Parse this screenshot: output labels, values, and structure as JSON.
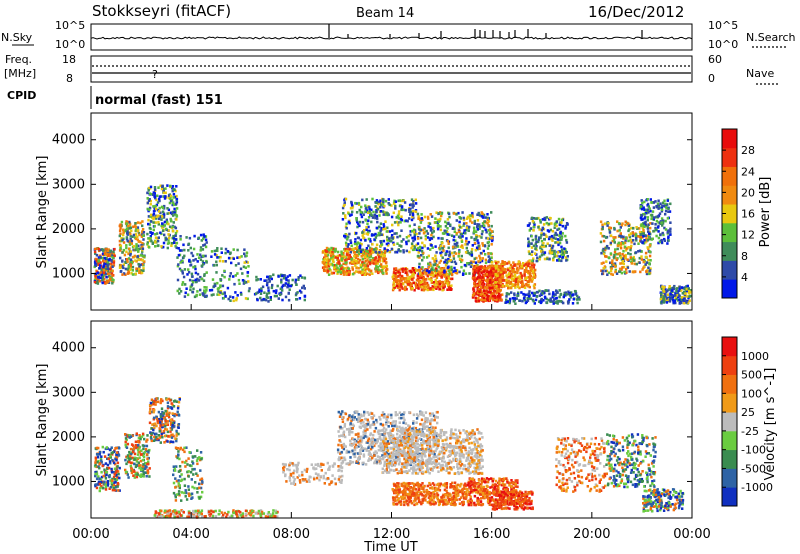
{
  "header": {
    "station": "Stokkseyri (fitACF)",
    "beam": "Beam 14",
    "date": "16/Dec/2012"
  },
  "noise_panel": {
    "left_label": "N.Sky",
    "left_ticks": [
      "10^5",
      "10^0"
    ],
    "right_label": "N.Search",
    "right_ticks": [
      "10^5",
      "10^0"
    ]
  },
  "freq_panel": {
    "left_label_1": "Freq.",
    "left_label_2": "[MHz]",
    "left_ticks": [
      "18",
      "8"
    ],
    "right_label": "Nave",
    "right_ticks": [
      "60",
      "0"
    ]
  },
  "cpid": {
    "label": "CPID",
    "value": "normal (fast) 151"
  },
  "colors": {
    "power_scale": [
      "#0018e8",
      "#2e4aa8",
      "#3f8c5a",
      "#5cbf3a",
      "#e8c810",
      "#f08a10",
      "#f0700a",
      "#ee3010",
      "#e80c0c"
    ],
    "velocity_scale": [
      "#1030c0",
      "#2e63a5",
      "#3a8c50",
      "#6acc40",
      "#bcbcbc",
      "#f09a18",
      "#f07010",
      "#ee4010",
      "#e81010"
    ]
  },
  "chart_data": [
    {
      "type": "heatmap",
      "name": "power",
      "ylabel": "Slant Range [km]",
      "y_ticks": [
        "4000",
        "3000",
        "2000",
        "1000"
      ],
      "ylim": [
        180,
        4600
      ],
      "colorbar_label": "Power [dB]",
      "colorbar_ticks": [
        "28",
        "24",
        "20",
        "16",
        "12",
        "8",
        "4"
      ],
      "colorbar_range": [
        0,
        32
      ]
    },
    {
      "type": "heatmap",
      "name": "velocity",
      "ylabel": "Slant Range [km]",
      "y_ticks": [
        "4000",
        "3000",
        "2000",
        "1000"
      ],
      "ylim": [
        180,
        4600
      ],
      "colorbar_label": "Velocity [m s^-1]",
      "colorbar_ticks": [
        "1000",
        "500",
        "100",
        "25",
        "-25",
        "-100",
        "-500",
        "-1000"
      ],
      "xlabel": "Time UT",
      "x_ticks": [
        "00:00",
        "04:00",
        "08:00",
        "12:00",
        "16:00",
        "20:00",
        "00:00"
      ],
      "xlim": [
        0,
        24
      ]
    }
  ]
}
